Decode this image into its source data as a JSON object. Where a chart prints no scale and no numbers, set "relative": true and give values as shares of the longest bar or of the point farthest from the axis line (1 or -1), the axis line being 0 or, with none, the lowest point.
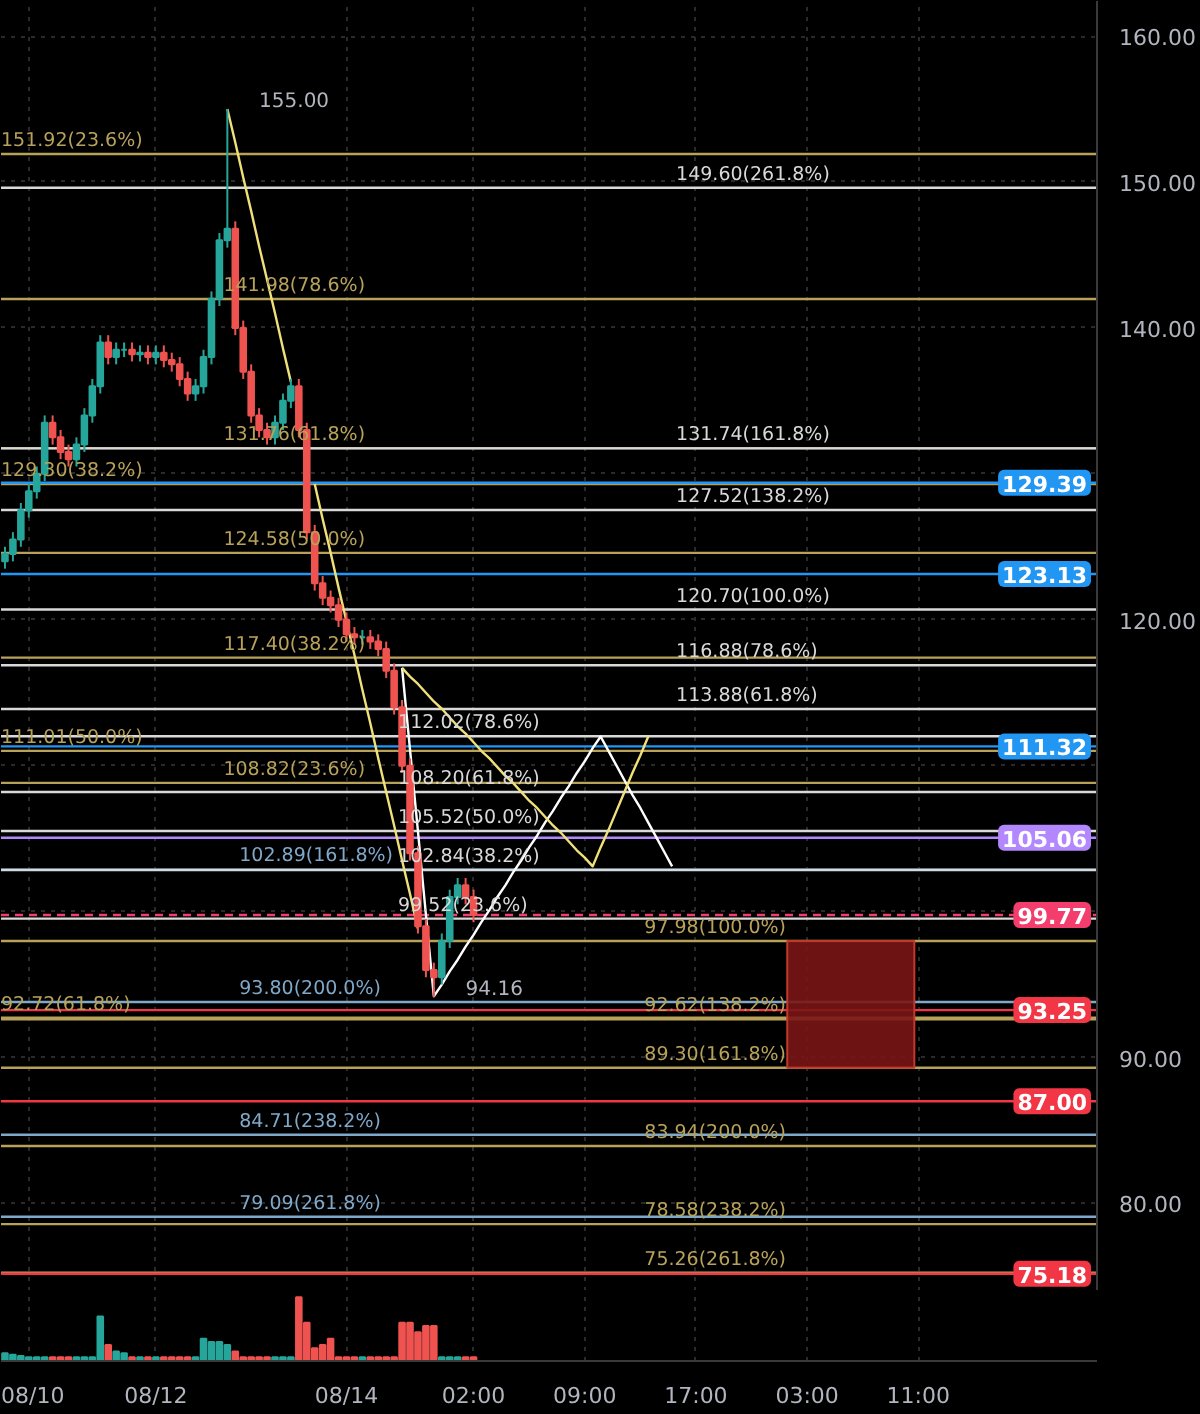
{
  "chart_data": [
    {
      "type": "candlestick",
      "categories": [
        null,
        null,
        null,
        "08/10",
        null,
        null,
        null,
        null,
        null,
        null,
        null,
        null,
        null,
        null,
        null,
        null,
        null,
        null,
        null,
        "08/12",
        null,
        null,
        null,
        null,
        null,
        null,
        null,
        null,
        null,
        null,
        null,
        null,
        null,
        null,
        null,
        null,
        null,
        null,
        null,
        null,
        null,
        null,
        null,
        "08/14",
        null,
        null,
        null,
        null,
        null,
        null,
        null,
        null,
        null,
        null,
        null,
        null,
        null,
        null,
        null,
        "02:00",
        null,
        null,
        null,
        null,
        null,
        null,
        null,
        null,
        null,
        null,
        null,
        null,
        null,
        "09:00",
        null,
        null,
        null,
        null,
        null,
        null,
        null,
        null,
        null,
        null,
        null,
        null,
        null,
        "17:00",
        null,
        null,
        null,
        null,
        null,
        null,
        null,
        null,
        null,
        null,
        null,
        null,
        null,
        "03:00",
        null,
        null,
        null,
        null,
        null,
        null,
        null,
        null,
        null,
        null,
        null,
        null,
        null,
        "11:00",
        null,
        null,
        null,
        null,
        null,
        null,
        null,
        null,
        null,
        null,
        null,
        null,
        null,
        null,
        null,
        null,
        null,
        null,
        null,
        null,
        null,
        null
      ],
      "ohlc": [
        [
          124.0,
          125.0,
          123.5,
          124.5
        ],
        [
          124.5,
          126.0,
          124.0,
          125.5
        ],
        [
          125.5,
          128.0,
          125.0,
          127.5
        ],
        [
          127.5,
          129.3,
          127.0,
          128.8
        ],
        [
          128.8,
          130.5,
          128.3,
          130.0
        ],
        [
          130.0,
          134.0,
          129.5,
          133.5
        ],
        [
          133.5,
          134.0,
          132.0,
          132.5
        ],
        [
          132.5,
          133.0,
          131.0,
          131.5
        ],
        [
          131.5,
          132.0,
          130.5,
          131.0
        ],
        [
          131.0,
          132.5,
          130.5,
          132.0
        ],
        [
          132.0,
          134.5,
          131.5,
          134.0
        ],
        [
          134.0,
          136.5,
          133.5,
          136.0
        ],
        [
          136.0,
          139.5,
          135.5,
          139.0
        ],
        [
          139.0,
          139.5,
          137.5,
          138.0
        ],
        [
          138.0,
          139.0,
          137.5,
          138.5
        ],
        [
          138.5,
          139.0,
          138.0,
          138.5
        ],
        [
          138.5,
          139.0,
          137.7,
          138.2
        ],
        [
          138.2,
          138.8,
          137.7,
          138.3
        ],
        [
          138.3,
          138.8,
          137.5,
          138.0
        ],
        [
          138.0,
          138.8,
          137.5,
          138.3
        ],
        [
          138.3,
          138.8,
          137.3,
          137.8
        ],
        [
          137.8,
          138.3,
          137.0,
          137.5
        ],
        [
          137.5,
          138.0,
          136.0,
          136.5
        ],
        [
          136.5,
          137.0,
          135.0,
          135.5
        ],
        [
          135.5,
          136.5,
          135.0,
          136.0
        ],
        [
          136.0,
          138.5,
          135.5,
          138.0
        ],
        [
          138.0,
          142.5,
          137.5,
          142.0
        ],
        [
          142.0,
          146.5,
          141.5,
          146.0
        ],
        [
          146.0,
          155.0,
          145.5,
          146.8
        ],
        [
          146.8,
          147.3,
          139.5,
          140.0
        ],
        [
          140.0,
          140.5,
          136.5,
          137.0
        ],
        [
          137.0,
          137.5,
          133.5,
          134.0
        ],
        [
          134.0,
          134.5,
          132.5,
          133.0
        ],
        [
          133.0,
          133.5,
          132.0,
          132.5
        ],
        [
          132.5,
          134.0,
          132.0,
          133.5
        ],
        [
          133.5,
          135.5,
          133.0,
          135.0
        ],
        [
          135.0,
          136.5,
          134.5,
          136.0
        ],
        [
          136.0,
          136.5,
          132.5,
          133.0
        ],
        [
          133.0,
          133.5,
          125.5,
          126.0
        ],
        [
          126.0,
          126.5,
          122.0,
          122.5
        ],
        [
          122.5,
          123.0,
          121.0,
          121.5
        ],
        [
          121.5,
          122.0,
          120.5,
          121.0
        ],
        [
          121.0,
          121.5,
          119.5,
          120.0
        ],
        [
          120.0,
          120.5,
          118.5,
          119.0
        ],
        [
          119.0,
          119.5,
          118.3,
          118.8
        ],
        [
          118.8,
          119.3,
          118.3,
          118.8
        ],
        [
          118.8,
          119.3,
          118.0,
          118.5
        ],
        [
          118.5,
          119.0,
          117.5,
          118.0
        ],
        [
          118.0,
          118.5,
          116.0,
          116.5
        ],
        [
          116.5,
          117.0,
          113.5,
          114.0
        ],
        [
          114.0,
          114.5,
          109.5,
          110.0
        ],
        [
          110.0,
          110.5,
          103.5,
          104.0
        ],
        [
          104.0,
          104.5,
          98.5,
          99.0
        ],
        [
          99.0,
          99.5,
          95.5,
          96.0
        ],
        [
          96.0,
          96.5,
          94.16,
          95.5
        ],
        [
          95.5,
          98.5,
          95.0,
          98.0
        ],
        [
          98.0,
          101.5,
          97.5,
          101.0
        ],
        [
          101.0,
          102.3,
          100.5,
          101.8
        ],
        [
          101.8,
          102.3,
          100.5,
          101.0
        ],
        [
          101.0,
          101.5,
          99.27,
          99.77
        ],
        null,
        null,
        null,
        null,
        null,
        null,
        null,
        null,
        null,
        null,
        null,
        null,
        null,
        null,
        null,
        null,
        null,
        null,
        null,
        null,
        null,
        null,
        null,
        null,
        null,
        null,
        null,
        null,
        null,
        null,
        null,
        null,
        null,
        null,
        null,
        null,
        null,
        null,
        null,
        null,
        null,
        null,
        null,
        null,
        null,
        null,
        null,
        null,
        null,
        null,
        null,
        null,
        null,
        null,
        null,
        null,
        null,
        null,
        null,
        null,
        null,
        null,
        null,
        null,
        null,
        null,
        null,
        null,
        null,
        null,
        null,
        null,
        null,
        null,
        null,
        null,
        null,
        null
      ],
      "colors": [
        "#26a69a",
        "#26a69a",
        "#26a69a",
        "#26a69a",
        "#26a69a",
        "#26a69a",
        "#ef5350",
        "#ef5350",
        "#ef5350",
        "#26a69a",
        "#26a69a",
        "#26a69a",
        "#26a69a",
        "#ef5350",
        "#26a69a",
        "#26a69a",
        "#ef5350",
        "#26a69a",
        "#ef5350",
        "#26a69a",
        "#ef5350",
        "#ef5350",
        "#ef5350",
        "#ef5350",
        "#26a69a",
        "#26a69a",
        "#26a69a",
        "#26a69a",
        "#26a69a",
        "#ef5350",
        "#ef5350",
        "#ef5350",
        "#ef5350",
        "#ef5350",
        "#26a69a",
        "#26a69a",
        "#26a69a",
        "#ef5350",
        "#ef5350",
        "#ef5350",
        "#ef5350",
        "#ef5350",
        "#ef5350",
        "#ef5350",
        "#ef5350",
        "#26a69a",
        "#ef5350",
        "#ef5350",
        "#ef5350",
        "#ef5350",
        "#ef5350",
        "#ef5350",
        "#ef5350",
        "#ef5350",
        "#ef5350",
        "#26a69a",
        "#26a69a",
        "#26a69a",
        "#ef5350",
        "#ef5350",
        null,
        null,
        null,
        null,
        null,
        null,
        null,
        null,
        null,
        null,
        null,
        null,
        null,
        null,
        null,
        null,
        null,
        null,
        null,
        null,
        null,
        null,
        null,
        null,
        null,
        null,
        null,
        null,
        null,
        null,
        null,
        null,
        null,
        null,
        null,
        null,
        null,
        null,
        null,
        null,
        null,
        null,
        null,
        null,
        null,
        null,
        null,
        null,
        null,
        null,
        null,
        null,
        null,
        null,
        null,
        null,
        null,
        null,
        null,
        null,
        null,
        null,
        null,
        null,
        null,
        null,
        null,
        null,
        null,
        null,
        null,
        null,
        null,
        null,
        null,
        null,
        null,
        null
      ],
      "ylim": [
        74,
        162.4
      ],
      "yticks": [
        {
          "value": 80,
          "label": "80.00"
        },
        {
          "value": 90,
          "label": "90.00"
        },
        {
          "value": 100,
          "label": null
        },
        {
          "value": 110,
          "label": null
        },
        {
          "value": 120,
          "label": "120.00"
        },
        {
          "value": 130,
          "label": null
        },
        {
          "value": 140,
          "label": "140.00"
        },
        {
          "value": 150,
          "label": "150.00"
        },
        {
          "value": 160,
          "label": "160.00"
        }
      ],
      "tick_labels": "y",
      "grid": true,
      "series": [
        {
          "type": "line",
          "color": "#f0e07a",
          "values": [
            null,
            null,
            null,
            null,
            null,
            null,
            null,
            null,
            null,
            null,
            null,
            null,
            null,
            null,
            null,
            null,
            null,
            null,
            null,
            null,
            null,
            null,
            null,
            null,
            null,
            null,
            null,
            null,
            155.0,
            152.7,
            150.3,
            148.0,
            145.6,
            143.3,
            141.0,
            138.6,
            136.3,
            null,
            null,
            129.3,
            126.9,
            124.6,
            122.2,
            119.9,
            117.6,
            115.2,
            112.9,
            110.5,
            108.2,
            105.9,
            103.5,
            101.2,
            98.8,
            null,
            null,
            null,
            null,
            null,
            null,
            null,
            null,
            null,
            null,
            null,
            null,
            null,
            null,
            null,
            null,
            null,
            null,
            null,
            null,
            null,
            null,
            null,
            null,
            null,
            null,
            null,
            null,
            null,
            null,
            null,
            null,
            null,
            null,
            null,
            null,
            null,
            null,
            null,
            null,
            null,
            null,
            null,
            null,
            null,
            null,
            null,
            null,
            null,
            null,
            null,
            null,
            null,
            null,
            null,
            null,
            null,
            null,
            null,
            null,
            null,
            null,
            null,
            null,
            null,
            null,
            null,
            null,
            null,
            null,
            null,
            null,
            null,
            null,
            null,
            null,
            null,
            null,
            null,
            null,
            null,
            null,
            null,
            null,
            null
          ]
        },
        {
          "type": "line",
          "color": "#ffffff",
          "values": [
            null,
            null,
            null,
            null,
            null,
            null,
            null,
            null,
            null,
            null,
            null,
            null,
            null,
            null,
            null,
            null,
            null,
            null,
            null,
            null,
            null,
            null,
            null,
            null,
            null,
            null,
            null,
            null,
            null,
            null,
            null,
            null,
            null,
            null,
            null,
            null,
            null,
            null,
            null,
            null,
            null,
            null,
            null,
            null,
            null,
            null,
            null,
            null,
            null,
            null,
            116.7,
            111.1,
            105.5,
            99.8,
            94.2,
            95.0,
            95.9,
            96.7,
            97.6,
            98.4,
            99.3,
            100.1,
            101.0,
            101.8,
            102.7,
            103.5,
            104.4,
            105.2,
            106.1,
            106.9,
            107.8,
            108.6,
            109.5,
            110.3,
            111.2,
            112.0,
            111.0,
            110.0,
            109.0,
            108.0,
            107.1,
            106.1,
            105.1,
            104.1,
            103.1,
            null,
            null,
            null,
            null,
            null,
            null,
            null,
            null,
            null,
            null,
            null,
            null,
            null,
            null,
            null,
            null,
            null,
            null,
            null,
            null,
            null,
            null,
            null,
            null,
            null,
            null,
            null,
            null,
            null,
            null,
            null,
            null,
            null,
            null,
            null,
            null,
            null,
            null,
            null,
            null,
            null,
            null,
            null,
            null,
            null,
            null,
            null,
            null,
            null,
            null,
            null,
            null,
            null
          ]
        },
        {
          "type": "line",
          "color": "#f0e07a",
          "values": [
            null,
            null,
            null,
            null,
            null,
            null,
            null,
            null,
            null,
            null,
            null,
            null,
            null,
            null,
            null,
            null,
            null,
            null,
            null,
            null,
            null,
            null,
            null,
            null,
            null,
            null,
            null,
            null,
            null,
            null,
            null,
            null,
            null,
            null,
            null,
            null,
            null,
            null,
            null,
            null,
            null,
            null,
            null,
            null,
            null,
            null,
            null,
            null,
            null,
            null,
            116.7,
            116.1,
            115.6,
            115.0,
            114.4,
            113.9,
            113.3,
            112.7,
            112.2,
            111.6,
            111.0,
            110.5,
            109.9,
            109.3,
            108.8,
            108.2,
            107.6,
            107.1,
            106.5,
            105.9,
            105.4,
            104.8,
            104.2,
            103.7,
            103.1,
            104.4,
            105.6,
            106.9,
            108.2,
            109.5,
            110.7,
            112.0,
            null,
            null,
            null,
            null,
            null,
            null,
            null,
            null,
            null,
            null,
            null,
            null,
            null,
            null,
            null,
            null,
            null,
            null,
            null,
            null,
            null,
            null,
            null,
            null,
            null,
            null,
            null,
            null,
            null,
            null,
            null,
            null,
            null,
            null,
            null,
            null,
            null,
            null,
            null,
            null,
            null,
            null,
            null,
            null,
            null,
            null,
            null,
            null,
            null,
            null,
            null,
            null,
            null,
            null,
            null,
            null
          ]
        }
      ],
      "ref_lines": [
        {
          "axis": "y",
          "value": 151.92,
          "label": "151.92(23.6%)",
          "color": "#b8a25a"
        },
        {
          "axis": "y",
          "value": 141.98,
          "label": "141.98(78.6%)",
          "color": "#b8a25a"
        },
        {
          "axis": "y",
          "value": 131.76,
          "label": "131.76(61.8%)",
          "color": "#b8a25a"
        },
        {
          "axis": "y",
          "value": 129.3,
          "label": "129.30(38.2%)",
          "color": "#b8a25a"
        },
        {
          "axis": "y",
          "value": 124.58,
          "label": "124.58(50.0%)",
          "color": "#b8a25a"
        },
        {
          "axis": "y",
          "value": 117.4,
          "label": "117.40(38.2%)",
          "color": "#b8a25a"
        },
        {
          "axis": "y",
          "value": 111.01,
          "label": "111.01(50.0%)",
          "color": "#b8a25a"
        },
        {
          "axis": "y",
          "value": 108.82,
          "label": "108.82(23.6%)",
          "color": "#b8a25a"
        },
        {
          "axis": "y",
          "value": 92.72,
          "label": "92.72(61.8%)",
          "color": "#b8a25a"
        },
        {
          "axis": "y",
          "value": 102.89,
          "label": "102.89(161.8%)",
          "color": "#7fa8c9"
        },
        {
          "axis": "y",
          "value": 93.8,
          "label": "93.80(200.0%)",
          "color": "#7fa8c9"
        },
        {
          "axis": "y",
          "value": 84.71,
          "label": "84.71(238.2%)",
          "color": "#7fa8c9"
        },
        {
          "axis": "y",
          "value": 79.09,
          "label": "79.09(261.8%)",
          "color": "#7fa8c9"
        },
        {
          "axis": "y",
          "value": 149.6,
          "label": "149.60(261.8%)",
          "color": "#d9d9d9"
        },
        {
          "axis": "y",
          "value": 131.74,
          "label": "131.74(161.8%)",
          "color": "#d9d9d9"
        },
        {
          "axis": "y",
          "value": 127.52,
          "label": "127.52(138.2%)",
          "color": "#d9d9d9"
        },
        {
          "axis": "y",
          "value": 120.7,
          "label": "120.70(100.0%)",
          "color": "#d9d9d9"
        },
        {
          "axis": "y",
          "value": 116.88,
          "label": "116.88(78.6%)",
          "color": "#d9d9d9"
        },
        {
          "axis": "y",
          "value": 113.88,
          "label": "113.88(61.8%)",
          "color": "#d9d9d9"
        },
        {
          "axis": "y",
          "value": 112.02,
          "label": "112.02(78.6%)",
          "color": "#d9d9d9"
        },
        {
          "axis": "y",
          "value": 108.2,
          "label": "108.20(61.8%)",
          "color": "#d9d9d9"
        },
        {
          "axis": "y",
          "value": 105.52,
          "label": "105.52(50.0%)",
          "color": "#d9d9d9"
        },
        {
          "axis": "y",
          "value": 102.84,
          "label": "102.84(38.2%)",
          "color": "#d9d9d9"
        },
        {
          "axis": "y",
          "value": 99.52,
          "label": "99.52(23.6%)",
          "color": "#d9d9d9"
        },
        {
          "axis": "y",
          "value": 97.98,
          "label": "97.98(100.0%)",
          "color": "#b8a25a"
        },
        {
          "axis": "y",
          "value": 92.62,
          "label": "92.62(138.2%)",
          "color": "#b8a25a"
        },
        {
          "axis": "y",
          "value": 89.3,
          "label": "89.30(161.8%)",
          "color": "#b8a25a"
        },
        {
          "axis": "y",
          "value": 83.94,
          "label": "83.94(200.0%)",
          "color": "#b8a25a"
        },
        {
          "axis": "y",
          "value": 78.58,
          "label": "78.58(238.2%)",
          "color": "#b8a25a"
        },
        {
          "axis": "y",
          "value": 75.26,
          "label": "75.26(261.8%)",
          "color": "#b8a25a"
        },
        {
          "axis": "y",
          "value": 129.39,
          "label": "129.39",
          "color": "#2196f3"
        },
        {
          "axis": "y",
          "value": 123.13,
          "label": "123.13",
          "color": "#2196f3"
        },
        {
          "axis": "y",
          "value": 111.32,
          "label": "111.32",
          "color": "#2196f3"
        },
        {
          "axis": "y",
          "value": 105.06,
          "label": "105.06",
          "color": "#b388ff"
        },
        {
          "axis": "y",
          "value": 99.77,
          "label": "99.77",
          "color": "#f23d6d",
          "line_style": "dashed"
        },
        {
          "axis": "y",
          "value": 93.25,
          "label": "93.25",
          "color": "#f23645"
        },
        {
          "axis": "y",
          "value": 87.0,
          "label": "87.00",
          "color": "#f23645"
        },
        {
          "axis": "y",
          "value": 75.18,
          "label": "75.18",
          "color": "#f23645"
        }
      ],
      "bands": [
        {
          "axis": "y",
          "from": 89.3,
          "to": 97.98,
          "color": "#7a1515"
        }
      ],
      "annotations": [
        "155.00",
        "94.16"
      ]
    },
    {
      "type": "bar",
      "relative": true,
      "tick_labels": "x",
      "grid": "x",
      "categories": [
        null,
        null,
        null,
        "08/10",
        null,
        null,
        null,
        null,
        null,
        null,
        null,
        null,
        null,
        null,
        null,
        null,
        null,
        null,
        null,
        "08/12",
        null,
        null,
        null,
        null,
        null,
        null,
        null,
        null,
        null,
        null,
        null,
        null,
        null,
        null,
        null,
        null,
        null,
        null,
        null,
        null,
        null,
        null,
        null,
        "08/14",
        null,
        null,
        null,
        null,
        null,
        null,
        null,
        null,
        null,
        null,
        null,
        null,
        null,
        null,
        null,
        "02:00",
        null,
        null,
        null,
        null,
        null,
        null,
        null,
        null,
        null,
        null,
        null,
        null,
        null,
        "09:00",
        null,
        null,
        null,
        null,
        null,
        null,
        null,
        null,
        null,
        null,
        null,
        null,
        null,
        "17:00",
        null,
        null,
        null,
        null,
        null,
        null,
        null,
        null,
        null,
        null,
        null,
        null,
        null,
        "03:00",
        null,
        null,
        null,
        null,
        null,
        null,
        null,
        null,
        null,
        null,
        null,
        null,
        null,
        "11:00",
        null,
        null,
        null,
        null,
        null,
        null,
        null,
        null,
        null,
        null,
        null,
        null,
        null,
        null,
        null,
        null,
        null,
        null,
        null,
        null,
        null,
        null
      ],
      "values": [
        0.12,
        0.1,
        0.08,
        0.06,
        0.06,
        0.06,
        0.06,
        0.06,
        0.06,
        0.06,
        0.06,
        0.06,
        0.7,
        0.25,
        0.15,
        0.12,
        0.06,
        0.06,
        0.06,
        0.06,
        0.06,
        0.06,
        0.06,
        0.06,
        0.06,
        0.35,
        0.3,
        0.3,
        0.25,
        0.15,
        0.06,
        0.06,
        0.06,
        0.06,
        0.06,
        0.06,
        0.06,
        1.0,
        0.6,
        0.2,
        0.25,
        0.35,
        0.06,
        0.06,
        0.06,
        0.06,
        0.06,
        0.06,
        0.06,
        0.06,
        0.6,
        0.6,
        0.45,
        0.55,
        0.55,
        0.06,
        0.06,
        0.06,
        0.06,
        0.06,
        null,
        null,
        null,
        null,
        null,
        null,
        null,
        null,
        null,
        null,
        null,
        null,
        null,
        null,
        null,
        null,
        null,
        null,
        null,
        null,
        null,
        null,
        null,
        null,
        null,
        null,
        null,
        null,
        null,
        null,
        null,
        null,
        null,
        null,
        null,
        null,
        null,
        null,
        null,
        null,
        null,
        null,
        null,
        null,
        null,
        null,
        null,
        null,
        null,
        null,
        null,
        null,
        null,
        null,
        null,
        null,
        null,
        null,
        null,
        null,
        null,
        null,
        null,
        null,
        null,
        null,
        null,
        null,
        null,
        null,
        null,
        null,
        null,
        null,
        null,
        null,
        null,
        null
      ],
      "colors": [
        "#26a69a",
        "#26a69a",
        "#26a69a",
        "#26a69a",
        "#26a69a",
        "#26a69a",
        "#ef5350",
        "#ef5350",
        "#ef5350",
        "#26a69a",
        "#26a69a",
        "#26a69a",
        "#26a69a",
        "#ef5350",
        "#26a69a",
        "#26a69a",
        "#ef5350",
        "#26a69a",
        "#ef5350",
        "#26a69a",
        "#ef5350",
        "#ef5350",
        "#ef5350",
        "#ef5350",
        "#26a69a",
        "#26a69a",
        "#26a69a",
        "#26a69a",
        "#26a69a",
        "#ef5350",
        "#ef5350",
        "#ef5350",
        "#ef5350",
        "#ef5350",
        "#26a69a",
        "#26a69a",
        "#26a69a",
        "#ef5350",
        "#ef5350",
        "#ef5350",
        "#ef5350",
        "#ef5350",
        "#ef5350",
        "#ef5350",
        "#ef5350",
        "#26a69a",
        "#ef5350",
        "#ef5350",
        "#ef5350",
        "#ef5350",
        "#ef5350",
        "#ef5350",
        "#ef5350",
        "#ef5350",
        "#ef5350",
        "#26a69a",
        "#26a69a",
        "#26a69a",
        "#ef5350",
        "#ef5350",
        null,
        null,
        null,
        null,
        null,
        null,
        null,
        null,
        null,
        null,
        null,
        null,
        null,
        null,
        null,
        null,
        null,
        null,
        null,
        null,
        null,
        null,
        null,
        null,
        null,
        null,
        null,
        null,
        null,
        null,
        null,
        null,
        null,
        null,
        null,
        null,
        null,
        null,
        null,
        null,
        null,
        null,
        null,
        null,
        null,
        null,
        null,
        null,
        null,
        null,
        null,
        null,
        null,
        null,
        null,
        null,
        null,
        null,
        null,
        null,
        null,
        null,
        null,
        null,
        null,
        null,
        null,
        null,
        null,
        null,
        null,
        null,
        null,
        null,
        null,
        null,
        null,
        null
      ]
    }
  ]
}
